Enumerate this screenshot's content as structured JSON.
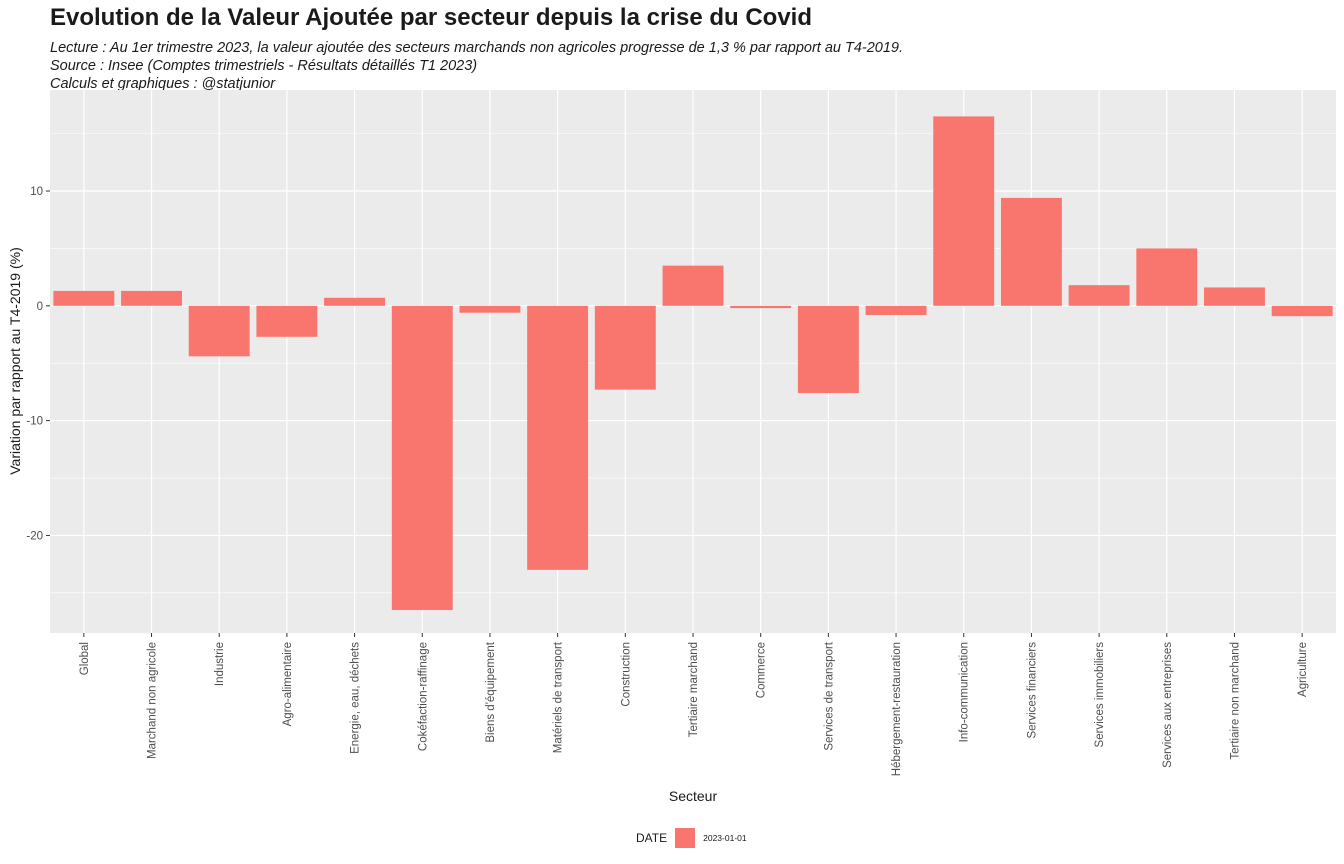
{
  "title": "Evolution de la Valeur Ajoutée par secteur depuis la crise du Covid",
  "subtitle": {
    "line1": "Lecture : Au 1er trimestre 2023, la valeur ajoutée des secteurs marchands non agricoles progresse de 1,3 % par rapport au T4-2019.",
    "line2": "Source : Insee (Comptes trimestriels - Résultats détaillés T1 2023)",
    "line3": "Calculs et graphiques : @statjunior"
  },
  "legend": {
    "title": "DATE",
    "label": "2023-01-01"
  },
  "colors": {
    "bar": "#f8766d",
    "panel": "#ebebeb",
    "grid_major": "#ffffff",
    "axis_text": "#4d4d4d"
  },
  "chart_data": {
    "type": "bar",
    "xlabel": "Secteur",
    "ylabel": "Variation par rapport au T4-2019 (%)",
    "ylim": [
      -28.5,
      18.8
    ],
    "yticks": [
      -20,
      -10,
      0,
      10
    ],
    "grid": true,
    "legend_position": "bottom",
    "categories": [
      "Global",
      "Marchand non agricole",
      "Industrie",
      "Agro-alimentaire",
      "Energie, eau, déchets",
      "Cokéfaction-raffinage",
      "Biens d'équipement",
      "Matériels de transport",
      "Construction",
      "Tertiaire marchand",
      "Commerce",
      "Services de transport",
      "Hébergement-restauration",
      "Info-communication",
      "Services financiers",
      "Services immobiliers",
      "Services aux entreprises",
      "Tertiaire non marchand",
      "Agriculture"
    ],
    "series": [
      {
        "name": "2023-01-01",
        "values": [
          1.3,
          1.3,
          -4.4,
          -2.7,
          0.7,
          -26.5,
          -0.6,
          -23.0,
          -7.3,
          3.5,
          -0.2,
          -7.6,
          -0.8,
          16.5,
          9.4,
          1.8,
          5.0,
          1.6,
          -0.9
        ]
      }
    ]
  }
}
